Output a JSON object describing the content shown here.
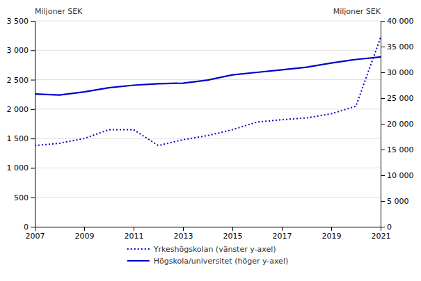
{
  "chart_data": {
    "type": "line",
    "x": [
      2007,
      2008,
      2009,
      2010,
      2011,
      2012,
      2013,
      2014,
      2015,
      2016,
      2017,
      2018,
      2019,
      2020,
      2021
    ],
    "xlim": [
      2007,
      2021
    ],
    "xticks": [
      2007,
      2009,
      2011,
      2013,
      2015,
      2017,
      2019,
      2021
    ],
    "ylabel": "Miljoner SEK",
    "y2label": "Miljoner SEK",
    "ylim": [
      0,
      3500
    ],
    "yticks": [
      0,
      500,
      {
        "value": 1000,
        "label": "1 000"
      },
      {
        "value": 1500,
        "label": "1 500"
      },
      {
        "value": 2000,
        "label": "2 000"
      },
      {
        "value": 2500,
        "label": "2 500"
      },
      {
        "value": 3000,
        "label": "3 000"
      },
      {
        "value": 3500,
        "label": "3 500"
      }
    ],
    "y2lim": [
      0,
      40000
    ],
    "y2ticks": [
      0,
      {
        "value": 5000,
        "label": "5 000"
      },
      {
        "value": 10000,
        "label": "10 000"
      },
      {
        "value": 15000,
        "label": "15 000"
      },
      {
        "value": 20000,
        "label": "20 000"
      },
      {
        "value": 25000,
        "label": "25 000"
      },
      {
        "value": 30000,
        "label": "30 000"
      },
      {
        "value": 35000,
        "label": "35 000"
      },
      {
        "value": 40000,
        "label": "40 000"
      }
    ],
    "grid": true,
    "legend": "bottom",
    "series": [
      {
        "name": "Yrkeshögskolan (vänster y-axel)",
        "color": "#0000CC",
        "line_style": "dotted",
        "values": [
          1380,
          1420,
          1500,
          1650,
          1650,
          1380,
          1480,
          1550,
          1650,
          1780,
          1820,
          1850,
          1920,
          2050,
          3220
        ]
      },
      {
        "name": "Högskola/universitet (höger y-axel)",
        "color": "#0000CC",
        "line_style": "solid",
        "axis": "y2",
        "values": [
          25800,
          25600,
          26200,
          27000,
          27500,
          27800,
          27900,
          28500,
          29500,
          30000,
          30500,
          31000,
          31800,
          32500,
          33000
        ]
      }
    ]
  }
}
